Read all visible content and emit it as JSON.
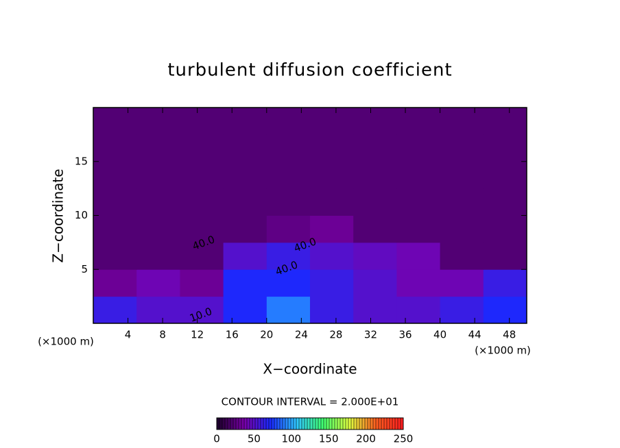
{
  "chart_data": {
    "type": "heatmap",
    "title": "turbulent diffusion coefficient",
    "x_label": "X−coordinate",
    "y_label": "Z−coordinate",
    "x_unit_label": "(×1000 m)",
    "contour_interval_label": "CONTOUR INTERVAL = 2.000E+01",
    "contour_labels": [
      "40.0",
      "40.0",
      "40.0",
      "10.0"
    ],
    "x": [
      2.5,
      7.5,
      12.5,
      17.5,
      22.5,
      27.5,
      32.5,
      37.5,
      42.5,
      47.5
    ],
    "y": [
      1.25,
      3.75,
      6.25,
      8.75,
      11.25,
      13.75,
      16.25,
      18.75
    ],
    "z": [
      [
        60,
        50,
        50,
        70,
        90,
        60,
        50,
        50,
        60,
        70
      ],
      [
        30,
        40,
        30,
        70,
        70,
        60,
        50,
        40,
        40,
        60
      ],
      [
        20,
        20,
        20,
        50,
        60,
        50,
        45,
        40,
        20,
        20
      ],
      [
        20,
        20,
        20,
        20,
        25,
        30,
        20,
        20,
        20,
        20
      ],
      [
        20,
        20,
        20,
        20,
        20,
        20,
        20,
        20,
        20,
        20
      ],
      [
        20,
        20,
        20,
        20,
        20,
        20,
        20,
        20,
        20,
        20
      ],
      [
        20,
        20,
        20,
        20,
        20,
        20,
        20,
        20,
        20,
        20
      ],
      [
        20,
        20,
        20,
        20,
        20,
        20,
        20,
        20,
        20,
        20
      ]
    ],
    "xlim": [
      0,
      50
    ],
    "ylim": [
      0,
      20
    ],
    "xticks": [
      4,
      8,
      12,
      16,
      20,
      24,
      28,
      32,
      36,
      40,
      44,
      48
    ],
    "yticks": [
      5,
      10,
      15
    ],
    "colorbar_lim": [
      0,
      250
    ],
    "colorbar_ticks": [
      0,
      50,
      100,
      150,
      200,
      250
    ],
    "colormap": [
      "#200030",
      "#7a00aa",
      "#1a2aff",
      "#30c8ff",
      "#40ff70",
      "#e0ff40",
      "#ff6020",
      "#ff2020"
    ]
  }
}
